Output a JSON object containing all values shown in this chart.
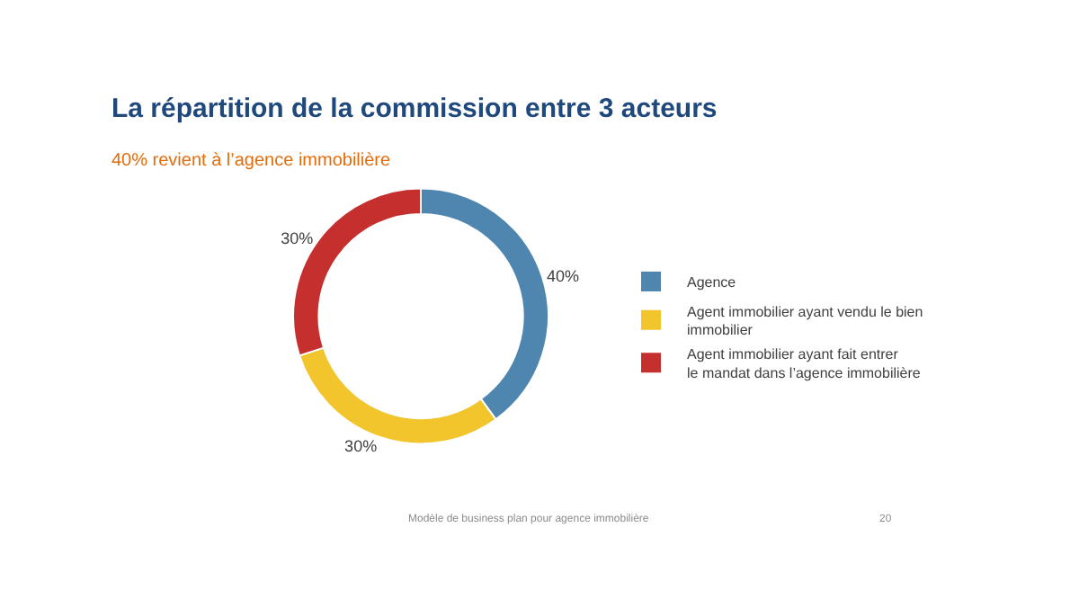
{
  "chart_data": {
    "type": "donut",
    "title": "La répartition de la commission entre 3 acteurs",
    "subtitle": "40% revient à l’agence immobilière",
    "categories": [
      "Agence",
      "Agent immobilier ayant vendu le bien immobilier",
      "Agent immobilier ayant fait entrer le mandat dans l’agence immobilière"
    ],
    "values": [
      40,
      30,
      30
    ],
    "colors": [
      "#4f86b0",
      "#f2c52c",
      "#c52f2e"
    ],
    "value_labels": [
      "40%",
      "30%",
      "30%"
    ],
    "legend": "right",
    "annotations": [
      "Modèle de business plan pour agence immobilière",
      "20"
    ]
  }
}
